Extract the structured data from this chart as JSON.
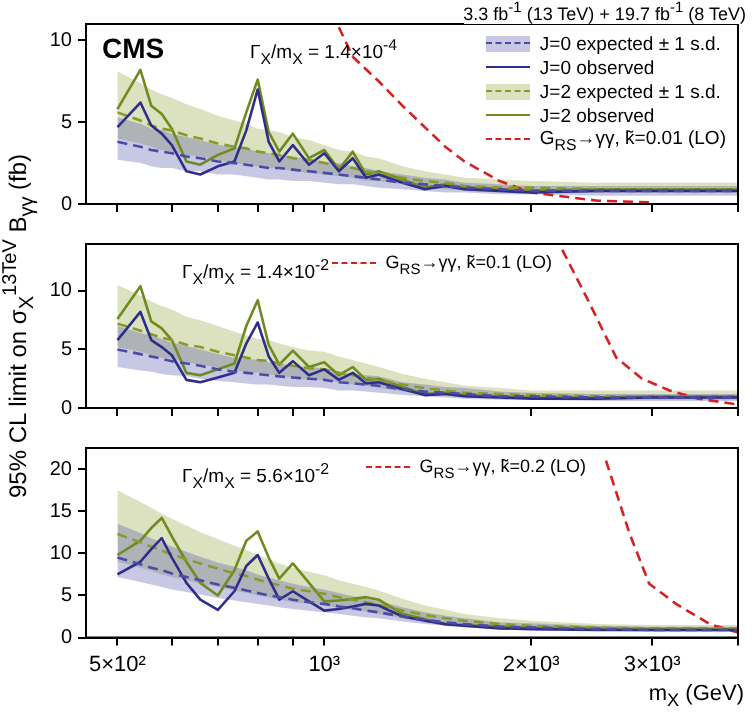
{
  "chart_data": [
    {
      "type": "line",
      "title": "CMS",
      "subtitle": "3.3 fb$^{-1}$ (13 TeV) + 19.7 fb$^{-1}$ (8 TeV)",
      "annotations": [
        "Γ$_{X}$/m$_{X}$ = 1.4×10$^{-4}$"
      ],
      "log": "x",
      "xlim": [
        450,
        4000
      ],
      "xticks": [
        {
          "value": 500,
          "label": null
        },
        {
          "value": 600,
          "label": null
        },
        {
          "value": 700,
          "label": null
        },
        {
          "value": 800,
          "label": null
        },
        {
          "value": 900,
          "label": null
        },
        {
          "value": 1000,
          "label": null
        },
        {
          "value": 2000,
          "label": null
        },
        {
          "value": 3000,
          "label": null
        },
        {
          "value": 4000,
          "label": null
        }
      ],
      "ylim": [
        0,
        11
      ],
      "yticks": [
        0,
        5,
        10
      ],
      "tick_labels": "y",
      "grid": false,
      "legend": "top right",
      "x": [
        500,
        540,
        560,
        580,
        600,
        630,
        660,
        700,
        740,
        770,
        800,
        830,
        860,
        900,
        950,
        1000,
        1050,
        1100,
        1150,
        1200,
        1300,
        1400,
        1500,
        1600,
        1800,
        2000,
        2500,
        3000,
        3500,
        4000
      ],
      "series": [
        {
          "name": "J=0 expected ± 1 s.d.",
          "color": "#4a4aa8",
          "line_style": "dashed",
          "values": [
            3.8,
            3.5,
            3.3,
            3.2,
            3.1,
            2.9,
            2.8,
            2.6,
            2.5,
            2.4,
            2.3,
            2.2,
            2.2,
            2.1,
            2.0,
            1.9,
            1.8,
            1.7,
            1.6,
            1.5,
            1.3,
            1.2,
            1.1,
            1.0,
            0.9,
            0.8,
            0.8,
            0.8,
            0.8,
            0.8
          ],
          "lower": [
            2.7,
            2.5,
            2.3,
            2.2,
            2.2,
            2.0,
            2.0,
            1.8,
            1.8,
            1.7,
            1.6,
            1.5,
            1.5,
            1.4,
            1.4,
            1.3,
            1.2,
            1.2,
            1.1,
            1.0,
            0.9,
            0.8,
            0.7,
            0.7,
            0.6,
            0.6,
            0.5,
            0.5,
            0.5,
            0.5
          ],
          "upper": [
            5.3,
            4.9,
            4.6,
            4.5,
            4.3,
            4.1,
            3.9,
            3.6,
            3.5,
            3.4,
            3.2,
            3.1,
            3.0,
            2.9,
            2.7,
            2.6,
            2.5,
            2.3,
            2.2,
            2.0,
            1.8,
            1.6,
            1.5,
            1.3,
            1.2,
            1.1,
            1.1,
            1.1,
            1.1,
            1.1
          ]
        },
        {
          "name": "J=0 observed",
          "color": "#2e2e8a",
          "line_style": "solid",
          "values": [
            4.7,
            6.2,
            4.8,
            4.3,
            3.6,
            2.0,
            1.8,
            2.3,
            2.6,
            4.5,
            7.0,
            3.8,
            2.6,
            3.6,
            2.4,
            3.1,
            2.0,
            2.8,
            1.6,
            1.8,
            1.3,
            0.9,
            1.1,
            0.9,
            0.8,
            0.7,
            0.8,
            0.8,
            0.8,
            0.8
          ]
        },
        {
          "name": "J=2 expected ± 1 s.d.",
          "color": "#8a9a2a",
          "line_style": "dashed",
          "values": [
            5.6,
            5.1,
            4.8,
            4.6,
            4.5,
            4.2,
            4.0,
            3.7,
            3.5,
            3.4,
            3.2,
            3.1,
            3.0,
            2.8,
            2.7,
            2.5,
            2.3,
            2.2,
            2.0,
            1.9,
            1.6,
            1.4,
            1.3,
            1.1,
            1.0,
            1.0,
            0.9,
            0.9,
            0.9,
            0.9
          ],
          "lower": [
            4.0,
            3.7,
            3.5,
            3.3,
            3.2,
            3.0,
            2.9,
            2.7,
            2.5,
            2.4,
            2.3,
            2.2,
            2.2,
            2.0,
            1.9,
            1.8,
            1.7,
            1.6,
            1.4,
            1.4,
            1.2,
            1.0,
            0.9,
            0.8,
            0.7,
            0.7,
            0.7,
            0.7,
            0.7,
            0.7
          ],
          "upper": [
            8.1,
            7.4,
            7.0,
            6.7,
            6.5,
            6.1,
            5.8,
            5.4,
            5.1,
            4.9,
            4.6,
            4.5,
            4.4,
            4.1,
            3.9,
            3.6,
            3.3,
            3.2,
            2.9,
            2.8,
            2.3,
            2.0,
            1.8,
            1.6,
            1.5,
            1.4,
            1.3,
            1.3,
            1.3,
            1.3
          ]
        },
        {
          "name": "J=2 observed",
          "color": "#6f8a1f",
          "line_style": "solid",
          "values": [
            5.8,
            8.2,
            6.0,
            5.5,
            4.6,
            2.6,
            2.4,
            3.0,
            3.4,
            5.6,
            7.6,
            4.4,
            3.2,
            4.3,
            2.8,
            3.3,
            2.1,
            3.2,
            1.8,
            2.0,
            1.5,
            1.0,
            1.2,
            1.0,
            0.9,
            0.8,
            0.9,
            0.9,
            0.9,
            0.9
          ]
        },
        {
          "name": "G$_{RS}$→γγ, k̃=0.01 (LO)",
          "color": "#d42020",
          "line_style": "dashed",
          "x": [
            1050,
            1100,
            1200,
            1300,
            1400,
            1500,
            1600,
            1800,
            2000,
            2500,
            3000
          ],
          "values": [
            10.8,
            9.0,
            7.5,
            6.0,
            4.7,
            3.5,
            2.6,
            1.4,
            0.7,
            0.2,
            0.1
          ]
        }
      ]
    },
    {
      "type": "line",
      "ylabel": "95% CL limit on σ$_{X}$$^{13TeV}$ B$_{γγ}$ (fb)",
      "annotations": [
        "Γ$_{X}$/m$_{X}$ = 1.4×10$^{-2}$"
      ],
      "log": "x",
      "xlim": [
        450,
        4000
      ],
      "xticks": [
        {
          "value": 500,
          "label": null
        },
        {
          "value": 600,
          "label": null
        },
        {
          "value": 700,
          "label": null
        },
        {
          "value": 800,
          "label": null
        },
        {
          "value": 900,
          "label": null
        },
        {
          "value": 1000,
          "label": null
        },
        {
          "value": 2000,
          "label": null
        },
        {
          "value": 3000,
          "label": null
        },
        {
          "value": 4000,
          "label": null
        }
      ],
      "ylim": [
        0,
        14
      ],
      "yticks": [
        0,
        5,
        10
      ],
      "tick_labels": "y",
      "grid": false,
      "legend": "top right",
      "x": [
        500,
        540,
        560,
        580,
        600,
        630,
        660,
        700,
        740,
        770,
        800,
        830,
        860,
        900,
        950,
        1000,
        1050,
        1100,
        1150,
        1200,
        1300,
        1400,
        1500,
        1600,
        1800,
        2000,
        2500,
        3000,
        3500,
        4000
      ],
      "series": [
        {
          "color": "#4a4aa8",
          "line_style": "dashed",
          "values": [
            5.0,
            4.6,
            4.4,
            4.2,
            4.0,
            3.8,
            3.6,
            3.3,
            3.1,
            3.0,
            2.9,
            2.8,
            2.7,
            2.6,
            2.5,
            2.4,
            2.2,
            2.1,
            2.0,
            1.9,
            1.6,
            1.4,
            1.3,
            1.2,
            1.0,
            1.0,
            0.9,
            0.9,
            0.9,
            0.9
          ],
          "lower": [
            3.5,
            3.2,
            3.1,
            2.9,
            2.8,
            2.7,
            2.5,
            2.3,
            2.2,
            2.1,
            2.0,
            2.0,
            1.9,
            1.8,
            1.8,
            1.7,
            1.5,
            1.5,
            1.4,
            1.3,
            1.1,
            1.0,
            0.9,
            0.8,
            0.7,
            0.7,
            0.6,
            0.6,
            0.6,
            0.6
          ],
          "upper": [
            7.0,
            6.4,
            6.2,
            5.9,
            5.6,
            5.3,
            5.0,
            4.6,
            4.3,
            4.2,
            4.1,
            3.9,
            3.8,
            3.6,
            3.5,
            3.4,
            3.1,
            2.9,
            2.8,
            2.7,
            2.2,
            2.0,
            1.8,
            1.7,
            1.4,
            1.3,
            1.2,
            1.2,
            1.2,
            1.2
          ]
        },
        {
          "color": "#2e2e8a",
          "line_style": "solid",
          "values": [
            5.8,
            8.2,
            5.8,
            5.2,
            4.5,
            2.4,
            2.2,
            2.6,
            3.0,
            5.5,
            7.3,
            4.4,
            3.0,
            4.0,
            2.8,
            3.3,
            2.4,
            3.0,
            2.1,
            2.2,
            1.6,
            1.1,
            1.2,
            1.0,
            0.9,
            0.8,
            0.8,
            0.9,
            0.9,
            0.9
          ]
        },
        {
          "color": "#8a9a2a",
          "line_style": "dashed",
          "values": [
            7.2,
            6.6,
            6.3,
            6.0,
            5.8,
            5.4,
            5.2,
            4.8,
            4.5,
            4.3,
            4.1,
            4.0,
            3.8,
            3.6,
            3.4,
            3.3,
            3.0,
            2.8,
            2.6,
            2.4,
            2.0,
            1.7,
            1.5,
            1.3,
            1.2,
            1.1,
            1.0,
            1.0,
            1.0,
            1.0
          ],
          "lower": [
            5.2,
            4.8,
            4.5,
            4.3,
            4.2,
            3.9,
            3.7,
            3.5,
            3.2,
            3.1,
            3.0,
            2.9,
            2.7,
            2.6,
            2.4,
            2.4,
            2.2,
            2.0,
            1.9,
            1.7,
            1.4,
            1.2,
            1.1,
            0.9,
            0.8,
            0.8,
            0.7,
            0.7,
            0.7,
            0.7
          ],
          "upper": [
            10.5,
            9.6,
            9.1,
            8.7,
            8.4,
            7.8,
            7.5,
            7.0,
            6.5,
            6.2,
            5.9,
            5.8,
            5.5,
            5.2,
            4.9,
            4.8,
            4.4,
            4.1,
            3.8,
            3.5,
            2.9,
            2.5,
            2.2,
            1.9,
            1.7,
            1.5,
            1.5,
            1.5,
            1.5,
            1.5
          ]
        },
        {
          "color": "#6f8a1f",
          "line_style": "solid",
          "values": [
            7.6,
            10.4,
            7.4,
            6.8,
            5.8,
            3.0,
            2.8,
            3.3,
            3.8,
            7.0,
            9.2,
            5.4,
            3.7,
            4.9,
            3.5,
            3.9,
            2.8,
            3.5,
            2.4,
            2.5,
            1.8,
            1.2,
            1.3,
            1.1,
            1.0,
            0.9,
            0.9,
            1.0,
            1.0,
            1.0
          ]
        },
        {
          "name": "G$_{RS}$→γγ, k̃=0.1 (LO)",
          "color": "#d42020",
          "line_style": "dashed",
          "x": [
            2220,
            2420,
            2660,
            2900,
            3180,
            3500,
            4000
          ],
          "values": [
            13.5,
            9.2,
            4.3,
            2.5,
            1.5,
            0.8,
            0.3
          ]
        }
      ]
    },
    {
      "type": "line",
      "xlabel": "m$_{X}$ (GeV)",
      "annotations": [
        "Γ$_{X}$/m$_{X}$ = 5.6×10$^{-2}$"
      ],
      "log": "x",
      "xlim": [
        450,
        4000
      ],
      "xticks": [
        {
          "value": 500,
          "label": "5×10²"
        },
        {
          "value": 600,
          "label": null
        },
        {
          "value": 700,
          "label": null
        },
        {
          "value": 800,
          "label": null
        },
        {
          "value": 900,
          "label": null
        },
        {
          "value": 1000,
          "label": "10³"
        },
        {
          "value": 2000,
          "label": "2×10³"
        },
        {
          "value": 3000,
          "label": "3×10³"
        },
        {
          "value": 4000,
          "label": null
        }
      ],
      "ylim": [
        0,
        22.5
      ],
      "yticks": [
        0,
        5,
        10,
        15,
        20
      ],
      "grid": false,
      "legend": "top right",
      "x": [
        500,
        540,
        560,
        580,
        600,
        630,
        660,
        700,
        740,
        770,
        800,
        830,
        860,
        900,
        950,
        1000,
        1050,
        1100,
        1150,
        1200,
        1300,
        1400,
        1500,
        1600,
        1800,
        2000,
        2500,
        3000,
        3500,
        4000
      ],
      "series": [
        {
          "color": "#4a4aa8",
          "line_style": "dashed",
          "values": [
            9.5,
            8.7,
            8.3,
            8.0,
            7.6,
            7.2,
            6.8,
            6.3,
            5.9,
            5.6,
            5.3,
            5.0,
            4.8,
            4.5,
            4.2,
            4.0,
            3.7,
            3.5,
            3.2,
            3.0,
            2.5,
            2.1,
            1.8,
            1.6,
            1.3,
            1.2,
            1.0,
            0.9,
            0.9,
            0.9
          ],
          "lower": [
            7.2,
            6.6,
            6.3,
            6.0,
            5.7,
            5.4,
            5.1,
            4.7,
            4.4,
            4.2,
            4.0,
            3.8,
            3.6,
            3.4,
            3.2,
            3.0,
            2.8,
            2.6,
            2.4,
            2.3,
            1.9,
            1.6,
            1.4,
            1.2,
            1.0,
            0.9,
            0.8,
            0.7,
            0.7,
            0.7
          ],
          "upper": [
            13.5,
            12.4,
            11.8,
            11.3,
            10.8,
            10.2,
            9.6,
            8.9,
            8.4,
            8.0,
            7.5,
            7.1,
            6.8,
            6.4,
            6.0,
            5.7,
            5.3,
            4.9,
            4.6,
            4.3,
            3.6,
            3.0,
            2.6,
            2.3,
            1.8,
            1.7,
            1.4,
            1.3,
            1.3,
            1.3
          ]
        },
        {
          "color": "#2e2e8a",
          "line_style": "solid",
          "values": [
            7.5,
            9.0,
            10.5,
            11.8,
            9.5,
            6.5,
            4.5,
            3.3,
            5.5,
            8.5,
            9.8,
            7.0,
            4.5,
            5.5,
            4.3,
            3.2,
            3.4,
            3.7,
            4.0,
            3.8,
            2.5,
            2.0,
            1.6,
            1.4,
            1.1,
            1.0,
            0.9,
            0.9,
            0.9,
            0.9
          ]
        },
        {
          "color": "#8a9a2a",
          "line_style": "dashed",
          "values": [
            12.3,
            11.3,
            10.8,
            10.3,
            9.9,
            9.3,
            8.8,
            8.2,
            7.6,
            7.3,
            6.9,
            6.5,
            6.2,
            5.8,
            5.5,
            5.2,
            4.8,
            4.5,
            4.2,
            3.9,
            3.2,
            2.7,
            2.3,
            2.0,
            1.6,
            1.4,
            1.2,
            1.1,
            1.1,
            1.1
          ],
          "lower": [
            9.0,
            8.3,
            7.9,
            7.5,
            7.2,
            6.8,
            6.4,
            6.0,
            5.6,
            5.3,
            5.0,
            4.8,
            4.5,
            4.2,
            4.0,
            3.8,
            3.5,
            3.3,
            3.1,
            2.8,
            2.3,
            2.0,
            1.7,
            1.5,
            1.2,
            1.0,
            0.9,
            0.8,
            0.8,
            0.8
          ],
          "upper": [
            17.5,
            16.1,
            15.4,
            14.7,
            14.1,
            13.3,
            12.5,
            11.7,
            10.9,
            10.4,
            9.8,
            9.3,
            8.8,
            8.3,
            7.8,
            7.4,
            6.8,
            6.4,
            6.0,
            5.6,
            4.6,
            3.8,
            3.3,
            2.8,
            2.3,
            2.0,
            1.6,
            1.5,
            1.5,
            1.5
          ]
        },
        {
          "color": "#6f8a1f",
          "line_style": "solid",
          "values": [
            9.8,
            11.5,
            13.0,
            14.2,
            12.0,
            9.0,
            6.5,
            5.0,
            8.0,
            11.5,
            12.6,
            9.5,
            7.0,
            8.8,
            6.5,
            4.3,
            4.4,
            4.6,
            4.8,
            4.5,
            2.8,
            2.2,
            1.6,
            1.5,
            1.3,
            1.2,
            1.1,
            1.0,
            1.0,
            1.0
          ]
        },
        {
          "name": "G$_{RS}$→γγ, k̃=0.2 (LO)",
          "color": "#d42020",
          "line_style": "dashed",
          "x": [
            2570,
            2780,
            2970,
            3250,
            3640,
            4000
          ],
          "values": [
            21,
            12.4,
            6.4,
            4.0,
            1.6,
            0.6
          ]
        }
      ]
    }
  ]
}
